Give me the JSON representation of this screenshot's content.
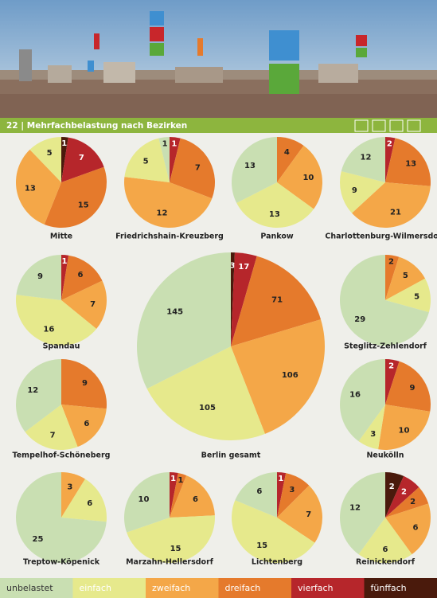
{
  "header": {
    "title": "22 | Mehrfachbelastung nach Bezirken"
  },
  "categories": [
    "unbelastet",
    "einfach",
    "zweifach",
    "dreifach",
    "vierfach",
    "fünffach"
  ],
  "colors": [
    "#c9dfb2",
    "#e6e98c",
    "#f4a748",
    "#e57a2c",
    "#b6262b",
    "#4a1a0c"
  ],
  "chart_data": [
    {
      "type": "pie",
      "title": "Mitte",
      "values": [
        0,
        5,
        13,
        15,
        7,
        1
      ]
    },
    {
      "type": "pie",
      "title": "Friedrichshain-Kreuzberg",
      "values": [
        1,
        5,
        12,
        7,
        1,
        0
      ]
    },
    {
      "type": "pie",
      "title": "Pankow",
      "values": [
        13,
        13,
        10,
        4,
        0,
        0
      ]
    },
    {
      "type": "pie",
      "title": "Charlottenburg-Wilmersdorf",
      "values": [
        12,
        9,
        21,
        13,
        2,
        0
      ]
    },
    {
      "type": "pie",
      "title": "Spandau",
      "values": [
        9,
        16,
        7,
        6,
        1,
        0
      ]
    },
    {
      "type": "pie",
      "title": "Berlin gesamt",
      "values": [
        145,
        105,
        106,
        71,
        17,
        3
      ]
    },
    {
      "type": "pie",
      "title": "Steglitz-Zehlendorf",
      "values": [
        29,
        5,
        5,
        2,
        0,
        0
      ]
    },
    {
      "type": "pie",
      "title": "Tempelhof-Schöneberg",
      "values": [
        12,
        7,
        6,
        9,
        0,
        0
      ]
    },
    {
      "type": "pie",
      "title": "Neukölln",
      "values": [
        16,
        3,
        10,
        9,
        2,
        0
      ]
    },
    {
      "type": "pie",
      "title": "Treptow-Köpenick",
      "values": [
        25,
        6,
        3,
        0,
        0,
        0
      ]
    },
    {
      "type": "pie",
      "title": "Marzahn-Hellersdorf",
      "values": [
        10,
        15,
        6,
        1,
        1,
        0
      ]
    },
    {
      "type": "pie",
      "title": "Lichtenberg",
      "values": [
        6,
        15,
        7,
        3,
        1,
        0
      ]
    },
    {
      "type": "pie",
      "title": "Reinickendorf",
      "values": [
        12,
        6,
        6,
        2,
        2,
        2
      ]
    }
  ]
}
